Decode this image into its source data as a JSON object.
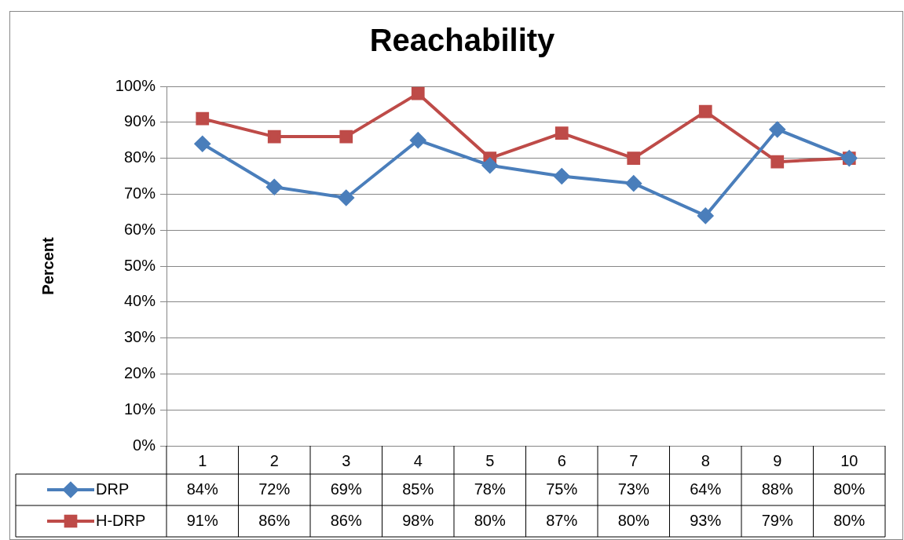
{
  "chart_data": {
    "type": "line",
    "title": "Reachability",
    "ylabel": "Percent",
    "categories": [
      "1",
      "2",
      "3",
      "4",
      "5",
      "6",
      "7",
      "8",
      "9",
      "10"
    ],
    "series": [
      {
        "name": "DRP",
        "color": "#4a7ebb",
        "marker": "diamond",
        "values": [
          84,
          72,
          69,
          85,
          78,
          75,
          73,
          64,
          88,
          80
        ],
        "value_labels": [
          "84%",
          "72%",
          "69%",
          "85%",
          "78%",
          "75%",
          "73%",
          "64%",
          "88%",
          "80%"
        ]
      },
      {
        "name": "H-DRP",
        "color": "#be4b48",
        "marker": "square",
        "values": [
          91,
          86,
          86,
          98,
          80,
          87,
          80,
          93,
          79,
          80
        ],
        "value_labels": [
          "91%",
          "86%",
          "86%",
          "98%",
          "80%",
          "87%",
          "80%",
          "93%",
          "79%",
          "80%"
        ]
      }
    ],
    "ylim": [
      0,
      100
    ],
    "yticks": [
      {
        "value": 0,
        "label": "0%"
      },
      {
        "value": 10,
        "label": "10%"
      },
      {
        "value": 20,
        "label": "20%"
      },
      {
        "value": 30,
        "label": "30%"
      },
      {
        "value": 40,
        "label": "40%"
      },
      {
        "value": 50,
        "label": "50%"
      },
      {
        "value": 60,
        "label": "60%"
      },
      {
        "value": 70,
        "label": "70%"
      },
      {
        "value": 80,
        "label": "80%"
      },
      {
        "value": 90,
        "label": "90%"
      },
      {
        "value": 100,
        "label": "100%"
      }
    ],
    "grid": "y",
    "legend": "bottom",
    "line_style": "solid"
  }
}
